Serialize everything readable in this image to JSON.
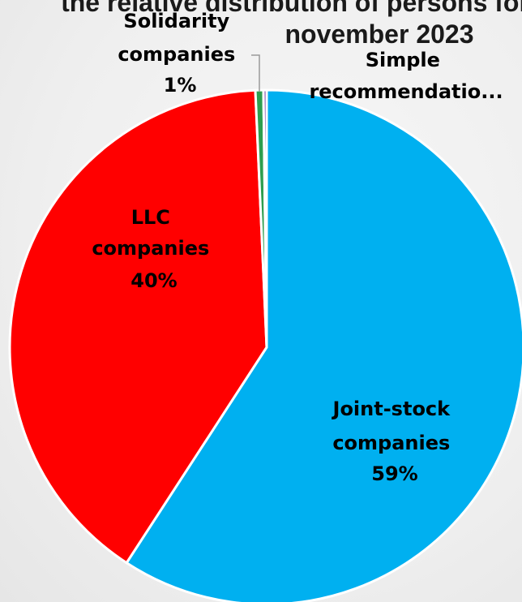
{
  "chart_data": {
    "type": "pie",
    "title_lines": [
      "the relative distribution of persons for",
      "november 2023"
    ],
    "slices": [
      {
        "label_lines": [
          "Joint-stock",
          "companies",
          "59%"
        ],
        "value": 59,
        "color": "#00b0f0"
      },
      {
        "label_lines": [
          "LLC",
          "companies",
          "40%"
        ],
        "value": 40,
        "color": "#ff0000"
      },
      {
        "label_lines": [
          "Solidarity",
          "companies",
          "1%"
        ],
        "value": 0.5,
        "color": "#2e9e4f"
      },
      {
        "label_lines": [
          "Simple",
          "recommendatio..."
        ],
        "value": 0.2,
        "color": "#7030a0"
      }
    ]
  }
}
